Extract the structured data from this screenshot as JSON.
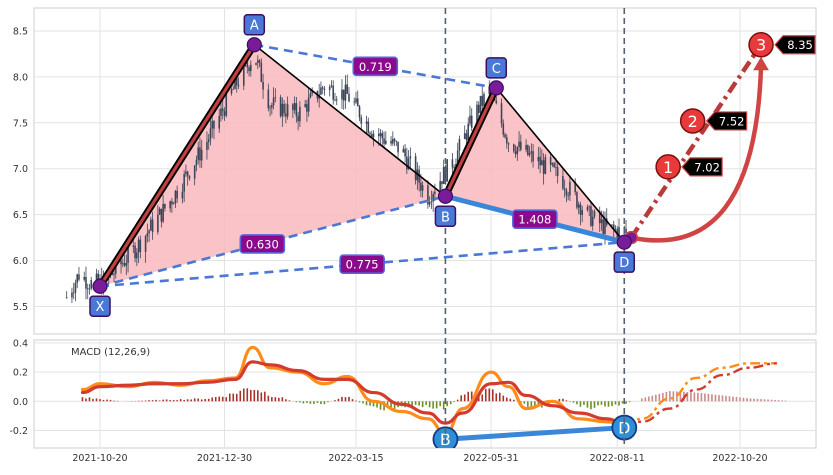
{
  "chart_data": [
    {
      "type": "candlestick",
      "title": "",
      "xlabel": "",
      "ylabel": "",
      "ylim": [
        5.2,
        8.75
      ],
      "yticks": [
        5.5,
        6.0,
        6.5,
        7.0,
        7.5,
        8.0,
        8.5
      ],
      "x_ticks": [
        "2021-10-20",
        "2021-12-30",
        "2022-03-15",
        "2022-05-31",
        "2022-08-11",
        "2022-10-20"
      ],
      "grid": true,
      "price_path": [
        {
          "date": "2021-10-01",
          "value": 5.6
        },
        {
          "date": "2021-10-08",
          "value": 5.85
        },
        {
          "date": "2021-10-15",
          "value": 5.75
        },
        {
          "date": "2021-10-22",
          "value": 5.75
        },
        {
          "date": "2021-11-10",
          "value": 6.15
        },
        {
          "date": "2021-12-01",
          "value": 6.7
        },
        {
          "date": "2021-12-20",
          "value": 7.3
        },
        {
          "date": "2022-01-05",
          "value": 7.9
        },
        {
          "date": "2022-01-16",
          "value": 8.25
        },
        {
          "date": "2022-01-25",
          "value": 7.7
        },
        {
          "date": "2022-02-10",
          "value": 7.6
        },
        {
          "date": "2022-02-25",
          "value": 7.9
        },
        {
          "date": "2022-03-10",
          "value": 7.8
        },
        {
          "date": "2022-03-25",
          "value": 7.4
        },
        {
          "date": "2022-04-10",
          "value": 7.2
        },
        {
          "date": "2022-04-25",
          "value": 6.7
        },
        {
          "date": "2022-05-10",
          "value": 7.1
        },
        {
          "date": "2022-05-22",
          "value": 7.6
        },
        {
          "date": "2022-05-30",
          "value": 7.85
        },
        {
          "date": "2022-06-10",
          "value": 7.3
        },
        {
          "date": "2022-06-25",
          "value": 7.1
        },
        {
          "date": "2022-07-10",
          "value": 6.9
        },
        {
          "date": "2022-07-25",
          "value": 6.5
        },
        {
          "date": "2022-08-05",
          "value": 6.35
        },
        {
          "date": "2022-08-16",
          "value": 6.3
        }
      ],
      "pattern_points": [
        {
          "label": "X",
          "date": "2021-10-20",
          "value": 5.72
        },
        {
          "label": "A",
          "date": "2022-01-16",
          "value": 8.35
        },
        {
          "label": "B",
          "date": "2022-05-05",
          "value": 6.7
        },
        {
          "label": "C",
          "date": "2022-06-03",
          "value": 7.88
        },
        {
          "label": "D",
          "date": "2022-08-15",
          "value": 6.2
        }
      ],
      "ratios": [
        {
          "label": "0.719",
          "from": "A",
          "to": "C"
        },
        {
          "label": "0.630",
          "from": "X",
          "to": "B"
        },
        {
          "label": "0.775",
          "from": "X",
          "to": "D"
        },
        {
          "label": "1.408",
          "from": "B",
          "to": "D"
        }
      ],
      "projection_start": {
        "date": "2022-08-19",
        "value": 6.25
      },
      "targets": [
        {
          "label": "1",
          "value_label": "7.02",
          "date": "2022-09-09",
          "value": 7.02
        },
        {
          "label": "2",
          "value_label": "7.52",
          "date": "2022-09-23",
          "value": 7.52
        },
        {
          "label": "3",
          "value_label": "8.35",
          "date": "2022-11-01",
          "value": 8.35
        }
      ],
      "vertical_markers": [
        "2022-05-05",
        "2022-08-15"
      ],
      "colors": {
        "candle": "#3d4658",
        "triangle_fill": "#f9b8bd",
        "leg_outer": "#c24040",
        "dashed": "#4a78d6",
        "bd_line": "#3a86d8",
        "point": "#7a1c9a",
        "ratio_box": "#8b0a8b",
        "label_box": "#4a78d6",
        "target": "#e83a3a",
        "target_tag": "#000000",
        "marker_line": "#556070"
      }
    },
    {
      "type": "line",
      "title": "",
      "legend": "MACD (12,26,9)",
      "ylim": [
        -0.32,
        0.42
      ],
      "yticks": [
        -0.2,
        0.0,
        0.2,
        0.4
      ],
      "grid": true,
      "series": [
        {
          "name": "",
          "color": "#ff8c1a",
          "points": [
            {
              "date": "2021-10-10",
              "value": 0.08
            },
            {
              "date": "2021-10-20",
              "value": 0.12
            },
            {
              "date": "2021-11-05",
              "value": 0.1
            },
            {
              "date": "2021-11-20",
              "value": 0.13
            },
            {
              "date": "2021-12-05",
              "value": 0.11
            },
            {
              "date": "2021-12-20",
              "value": 0.14
            },
            {
              "date": "2022-01-05",
              "value": 0.16
            },
            {
              "date": "2022-01-15",
              "value": 0.37
            },
            {
              "date": "2022-01-25",
              "value": 0.23
            },
            {
              "date": "2022-02-10",
              "value": 0.2
            },
            {
              "date": "2022-02-25",
              "value": 0.12
            },
            {
              "date": "2022-03-10",
              "value": 0.17
            },
            {
              "date": "2022-03-25",
              "value": 0.0
            },
            {
              "date": "2022-04-10",
              "value": -0.07
            },
            {
              "date": "2022-04-25",
              "value": -0.12
            },
            {
              "date": "2022-05-05",
              "value": -0.22
            },
            {
              "date": "2022-05-15",
              "value": -0.05
            },
            {
              "date": "2022-05-31",
              "value": 0.2
            },
            {
              "date": "2022-06-10",
              "value": 0.1
            },
            {
              "date": "2022-06-20",
              "value": -0.05
            },
            {
              "date": "2022-07-05",
              "value": 0.0
            },
            {
              "date": "2022-07-20",
              "value": -0.12
            },
            {
              "date": "2022-08-05",
              "value": -0.14
            },
            {
              "date": "2022-08-15",
              "value": -0.16
            }
          ]
        },
        {
          "name": "",
          "color": "#d23b2e",
          "points": [
            {
              "date": "2021-10-10",
              "value": 0.06
            },
            {
              "date": "2021-10-20",
              "value": 0.1
            },
            {
              "date": "2021-11-05",
              "value": 0.11
            },
            {
              "date": "2021-11-20",
              "value": 0.12
            },
            {
              "date": "2021-12-05",
              "value": 0.12
            },
            {
              "date": "2021-12-20",
              "value": 0.13
            },
            {
              "date": "2022-01-05",
              "value": 0.15
            },
            {
              "date": "2022-01-15",
              "value": 0.27
            },
            {
              "date": "2022-01-25",
              "value": 0.25
            },
            {
              "date": "2022-02-10",
              "value": 0.21
            },
            {
              "date": "2022-02-25",
              "value": 0.15
            },
            {
              "date": "2022-03-10",
              "value": 0.15
            },
            {
              "date": "2022-03-25",
              "value": 0.06
            },
            {
              "date": "2022-04-10",
              "value": -0.02
            },
            {
              "date": "2022-04-25",
              "value": -0.08
            },
            {
              "date": "2022-05-05",
              "value": -0.15
            },
            {
              "date": "2022-05-15",
              "value": -0.08
            },
            {
              "date": "2022-05-31",
              "value": 0.12
            },
            {
              "date": "2022-06-10",
              "value": 0.13
            },
            {
              "date": "2022-06-20",
              "value": 0.04
            },
            {
              "date": "2022-07-05",
              "value": -0.03
            },
            {
              "date": "2022-07-20",
              "value": -0.08
            },
            {
              "date": "2022-08-05",
              "value": -0.12
            },
            {
              "date": "2022-08-15",
              "value": -0.15
            }
          ]
        }
      ],
      "projections": [
        {
          "color": "#ff8c1a",
          "points": [
            {
              "date": "2022-08-15",
              "value": -0.16
            },
            {
              "date": "2022-08-25",
              "value": -0.12
            },
            {
              "date": "2022-09-10",
              "value": 0.02
            },
            {
              "date": "2022-09-25",
              "value": 0.16
            },
            {
              "date": "2022-10-10",
              "value": 0.23
            },
            {
              "date": "2022-10-25",
              "value": 0.26
            },
            {
              "date": "2022-11-10",
              "value": 0.26
            }
          ]
        },
        {
          "color": "#d23b2e",
          "points": [
            {
              "date": "2022-08-15",
              "value": -0.15
            },
            {
              "date": "2022-08-25",
              "value": -0.14
            },
            {
              "date": "2022-09-10",
              "value": -0.05
            },
            {
              "date": "2022-09-25",
              "value": 0.08
            },
            {
              "date": "2022-10-10",
              "value": 0.18
            },
            {
              "date": "2022-10-25",
              "value": 0.23
            },
            {
              "date": "2022-11-10",
              "value": 0.26
            }
          ]
        }
      ],
      "divergence": [
        {
          "label": "B",
          "date": "2022-05-05",
          "value": -0.26
        },
        {
          "label": "D",
          "date": "2022-08-15",
          "value": -0.18
        }
      ],
      "histogram": {
        "positive_color": "#a83228",
        "negative_color": "#6b8e23",
        "projected_color": "#c98a8a",
        "points": [
          {
            "date": "2021-10-10",
            "value": 0.03
          },
          {
            "date": "2021-11-01",
            "value": 0.0
          },
          {
            "date": "2021-11-25",
            "value": 0.01
          },
          {
            "date": "2021-12-20",
            "value": 0.02
          },
          {
            "date": "2022-01-02",
            "value": 0.05
          },
          {
            "date": "2022-01-15",
            "value": 0.11
          },
          {
            "date": "2022-01-25",
            "value": 0.05
          },
          {
            "date": "2022-02-10",
            "value": -0.01
          },
          {
            "date": "2022-02-25",
            "value": -0.02
          },
          {
            "date": "2022-03-10",
            "value": 0.04
          },
          {
            "date": "2022-03-22",
            "value": -0.04
          },
          {
            "date": "2022-04-05",
            "value": -0.06
          },
          {
            "date": "2022-04-20",
            "value": -0.03
          },
          {
            "date": "2022-05-05",
            "value": -0.06
          },
          {
            "date": "2022-05-15",
            "value": 0.05
          },
          {
            "date": "2022-05-31",
            "value": 0.08
          },
          {
            "date": "2022-06-10",
            "value": 0.03
          },
          {
            "date": "2022-06-25",
            "value": -0.06
          },
          {
            "date": "2022-07-10",
            "value": 0.02
          },
          {
            "date": "2022-07-25",
            "value": -0.05
          },
          {
            "date": "2022-08-10",
            "value": -0.03
          },
          {
            "date": "2022-08-18",
            "value": -0.01
          }
        ],
        "projected_points": [
          {
            "date": "2022-08-25",
            "value": 0.02
          },
          {
            "date": "2022-09-10",
            "value": 0.07
          },
          {
            "date": "2022-09-25",
            "value": 0.06
          },
          {
            "date": "2022-10-10",
            "value": 0.04
          },
          {
            "date": "2022-10-25",
            "value": 0.02
          },
          {
            "date": "2022-11-15",
            "value": 0.005
          }
        ]
      }
    }
  ]
}
